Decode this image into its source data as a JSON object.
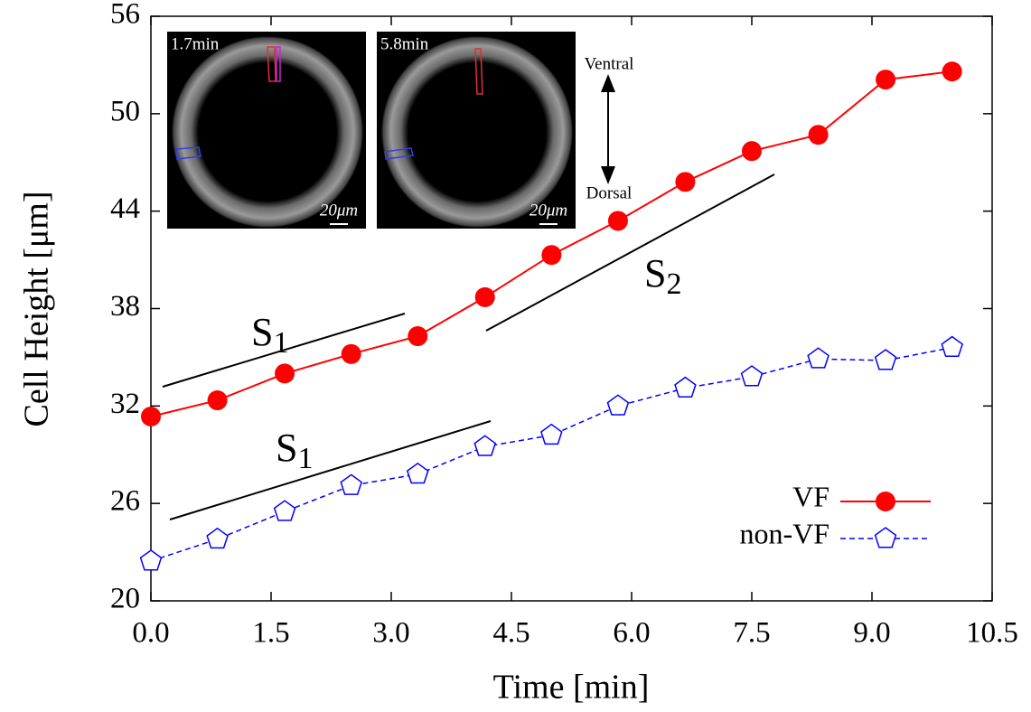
{
  "chart_data": {
    "type": "line",
    "x_label": "Time [min]",
    "y_label": "Cell Height [μm]",
    "x": [
      0,
      0.83,
      1.67,
      2.5,
      3.33,
      4.17,
      5.0,
      5.83,
      6.67,
      7.5,
      8.33,
      9.17,
      10.0
    ],
    "series": [
      {
        "name": "VF",
        "color": "#ff0000",
        "marker": "circle",
        "dash": false,
        "values": [
          31.35,
          32.35,
          34.0,
          35.2,
          36.3,
          38.7,
          41.3,
          43.4,
          45.8,
          47.7,
          48.7,
          52.1,
          52.6
        ]
      },
      {
        "name": "non-VF",
        "color": "#0000ff",
        "marker": "pentagon",
        "dash": true,
        "values": [
          22.45,
          23.8,
          25.5,
          27.1,
          27.8,
          29.5,
          30.2,
          32.0,
          33.1,
          33.8,
          34.9,
          34.8,
          35.6
        ]
      }
    ],
    "xlim": [
      0,
      10.5
    ],
    "xticks": [
      {
        "value": 0,
        "label": "0.0"
      },
      1.5,
      {
        "value": 3,
        "label": "3.0"
      },
      4.5,
      {
        "value": 6,
        "label": "6.0"
      },
      7.5,
      {
        "value": 9,
        "label": "9.0"
      },
      10.5
    ],
    "ylim": [
      20,
      56
    ],
    "yticks": [
      20,
      26,
      32,
      38,
      44,
      50,
      56
    ],
    "grid": false,
    "legend": "lower right",
    "annotations": [
      {
        "label": "S",
        "subscript": "1"
      },
      {
        "label": "S",
        "subscript": "1"
      },
      {
        "label": "S",
        "subscript": "2"
      }
    ],
    "insets": [
      {
        "time": "1.7min",
        "scale_bar": "20μm"
      },
      {
        "time": "5.8min",
        "scale_bar": "20μm"
      }
    ],
    "orientation": [
      "Ventral",
      "Dorsal"
    ]
  }
}
